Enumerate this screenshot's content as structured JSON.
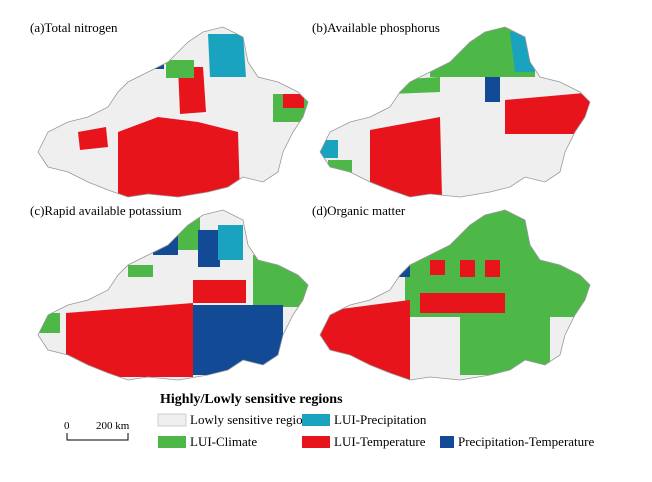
{
  "panels": [
    {
      "title": "(a)Total nitrogen"
    },
    {
      "title": "(b)Available phosphorus"
    },
    {
      "title": "(c)Rapid available potassium"
    },
    {
      "title": "(d)Organic matter"
    }
  ],
  "legend": {
    "title": "Highly/Lowly sensitive regions",
    "items": [
      "Lowly sensitive regions",
      "LUI-Precipitation",
      "LUI-Climate",
      "LUI-Temperature",
      "Precipitation-Temperature"
    ]
  },
  "scale_bar": {
    "start": "0",
    "end": "200 km"
  }
}
